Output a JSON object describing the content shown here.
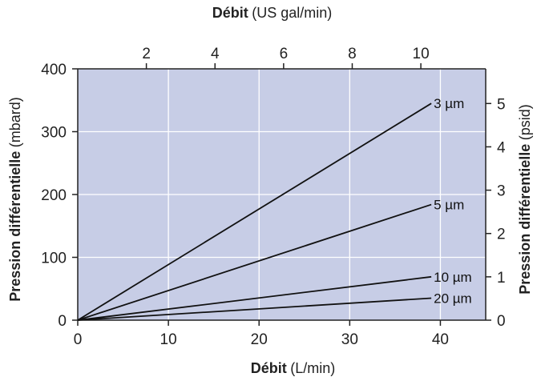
{
  "chart_data": {
    "type": "line",
    "x_bottom": {
      "label": "Débit",
      "unit": "(L/min)",
      "range": [
        0,
        45
      ],
      "ticks": [
        0,
        10,
        20,
        30,
        40
      ]
    },
    "x_top": {
      "label": "Débit",
      "unit": "(US gal/min)",
      "range": [
        0,
        11.89
      ],
      "ticks": [
        2,
        4,
        6,
        8,
        10
      ]
    },
    "y_left": {
      "label": "Pression différentielle",
      "unit": "(mbard)",
      "range": [
        0,
        400
      ],
      "ticks": [
        0,
        100,
        200,
        300,
        400
      ]
    },
    "y_right": {
      "label": "Pression différentielle",
      "unit": "(psid)",
      "range": [
        0,
        5.8
      ],
      "ticks": [
        0,
        1,
        2,
        3,
        4,
        5
      ]
    },
    "grid": true,
    "series": [
      {
        "name": "3 µm",
        "x": [
          0,
          39
        ],
        "y": [
          0,
          345
        ]
      },
      {
        "name": "5 µm",
        "x": [
          0,
          39
        ],
        "y": [
          0,
          184
        ]
      },
      {
        "name": "10 µm",
        "x": [
          0,
          39
        ],
        "y": [
          0,
          69
        ]
      },
      {
        "name": "20 µm",
        "x": [
          0,
          39
        ],
        "y": [
          0,
          35
        ]
      }
    ],
    "colors": {
      "plot_background": "#c7cde6",
      "grid": "#ffffff",
      "lines": "#111111",
      "axes": "#222222"
    }
  }
}
